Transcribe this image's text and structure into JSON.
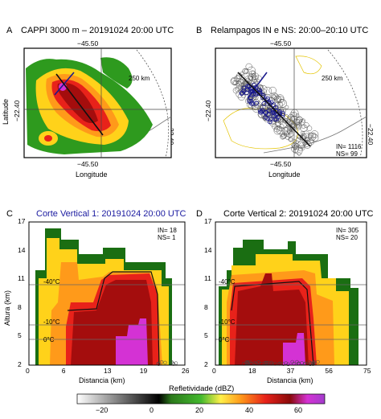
{
  "panels": [
    {
      "letter": "A",
      "title": "CAPPI 3000 m – 20191024 20:00 UTC",
      "top_lon": "−45.50",
      "bottom_lon": "−45.50",
      "left_lat": "−22.40",
      "right_lat": "−22.40",
      "range_label": "250 km",
      "xlabel": "Longitude",
      "ylabel": "Latitude"
    },
    {
      "letter": "B",
      "title": "Relampagos IN e NS: 20:00–20:10 UTC",
      "top_lon": "−45.50",
      "bottom_lon": "−45.50",
      "left_lat": "−22.40",
      "right_lat": "−22.40",
      "range_label": "250 km",
      "xlabel": "Longitude",
      "legend": [
        "IN= 1116",
        "NS= 99"
      ]
    },
    {
      "letter": "C",
      "title": "Corte Vertical 1: 20191024 20:00 UTC",
      "xlabel": "Distancia (km)",
      "ylabel": "Altura (km)",
      "legend": [
        "IN= 18",
        "NS= 1"
      ],
      "isotherms": [
        "-40°C",
        "-10°C",
        "0°C"
      ]
    },
    {
      "letter": "D",
      "title": "Corte Vertical 2: 20191024 20:00 UTC",
      "xlabel": "Distancia (km)",
      "legend": [
        "IN= 305",
        "NS= 20"
      ],
      "isotherms": [
        "-40°C",
        "-10°C",
        "0°C"
      ]
    }
  ],
  "colorbar": {
    "label": "Refletividade (dBZ)",
    "ticks": [
      "−20",
      "0",
      "20",
      "40",
      "60"
    ]
  },
  "chart_data": [
    {
      "type": "heatmap",
      "panel": "C",
      "title": "Corte Vertical 1: 20191024 20:00 UTC",
      "xlabel": "Distancia (km)",
      "ylabel": "Altura (km)",
      "x_ticks": [
        "0",
        "6",
        "13",
        "19",
        "26"
      ],
      "y_ticks": [
        "2",
        "5",
        "8",
        "11",
        "14",
        "17"
      ],
      "xlim": [
        0,
        26
      ],
      "ylim": [
        2,
        17
      ],
      "isotherm_heights_km": {
        "-40°C": 10.6,
        "-10°C": 6.9,
        "0°C": 5.0
      },
      "lightning": {
        "IN": 18,
        "NS": 1
      }
    },
    {
      "type": "heatmap",
      "panel": "D",
      "title": "Corte Vertical 2: 20191024 20:00 UTC",
      "xlabel": "Distancia (km)",
      "x_ticks": [
        "0",
        "18",
        "37",
        "56",
        "75"
      ],
      "y_ticks": [
        "2",
        "5",
        "8",
        "11",
        "14",
        "17"
      ],
      "xlim": [
        0,
        75
      ],
      "ylim": [
        2,
        17
      ],
      "isotherm_heights_km": {
        "-40°C": 10.6,
        "-10°C": 6.9,
        "0°C": 5.0
      },
      "lightning": {
        "IN": 305,
        "NS": 20
      }
    }
  ],
  "x_ticks_C": [
    "0",
    "6",
    "13",
    "19",
    "26"
  ],
  "x_ticks_D": [
    "0",
    "18",
    "37",
    "56",
    "75"
  ],
  "y_ticks": [
    "2",
    "5",
    "8",
    "11",
    "14",
    "17"
  ],
  "colors": {
    "green_dark": "#1a6e12",
    "green": "#2e9a1e",
    "yellow": "#ffd21a",
    "orange": "#ff9a1a",
    "red": "#e8221a",
    "darkred": "#a40d0d",
    "magenta": "#d432d4"
  }
}
